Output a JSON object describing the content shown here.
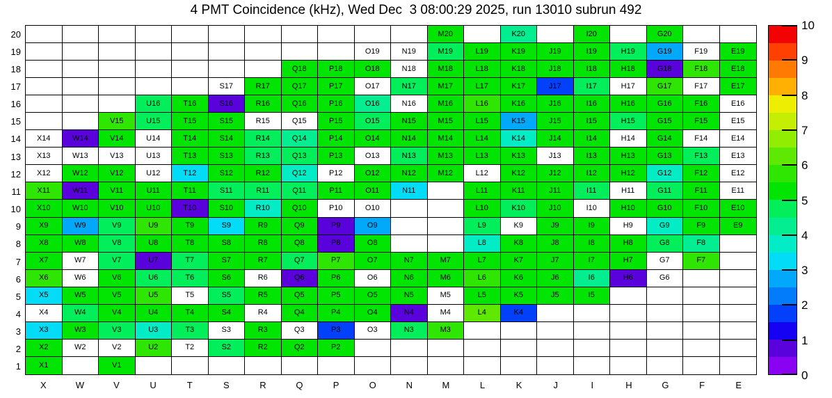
{
  "title": "4 PMT Coincidence (kHz), Wed Dec  3 08:00:29 2025, run 13010 subrun 492",
  "chart_data": {
    "type": "heatmap",
    "title": "4 PMT Coincidence (kHz), Wed Dec  3 08:00:29 2025, run 13010 subrun 492",
    "xlabel": "",
    "ylabel": "",
    "x_categories": [
      "X",
      "W",
      "V",
      "U",
      "T",
      "S",
      "R",
      "Q",
      "P",
      "O",
      "N",
      "M",
      "L",
      "K",
      "J",
      "I",
      "H",
      "G",
      "F",
      "E"
    ],
    "y_categories": [
      "20",
      "19",
      "18",
      "17",
      "16",
      "15",
      "14",
      "13",
      "12",
      "11",
      "10",
      "9",
      "8",
      "7",
      "6",
      "5",
      "4",
      "3",
      "2",
      "1"
    ],
    "value_unit": "kHz",
    "note_on_cells": "each cell = [label, value_estimate_kHz]; value null = labeled white cell; cell null = empty bin",
    "cells": [
      [
        null,
        null,
        null,
        null,
        null,
        null,
        null,
        null,
        null,
        null,
        null,
        [
          "M20",
          5.25
        ],
        null,
        [
          "K20",
          4.25
        ],
        null,
        [
          "I20",
          5.25
        ],
        null,
        [
          "G20",
          5.25
        ],
        null,
        null
      ],
      [
        null,
        null,
        null,
        null,
        null,
        null,
        null,
        null,
        null,
        [
          "O19",
          null
        ],
        [
          "N19",
          null
        ],
        [
          "M19",
          4.75
        ],
        [
          "L19",
          5.25
        ],
        [
          "K19",
          5.25
        ],
        [
          "J19",
          5.25
        ],
        [
          "I19",
          5.25
        ],
        [
          "H19",
          4.75
        ],
        [
          "G19",
          2.75
        ],
        [
          "F19",
          null
        ],
        [
          "E19",
          5.25
        ]
      ],
      [
        null,
        null,
        null,
        null,
        null,
        null,
        null,
        [
          "Q18",
          5.25
        ],
        [
          "P18",
          5.25
        ],
        [
          "O18",
          5.25
        ],
        [
          "N18",
          null
        ],
        [
          "M18",
          5.25
        ],
        [
          "L18",
          5.25
        ],
        [
          "K18",
          5.25
        ],
        [
          "J18",
          5.25
        ],
        [
          "I18",
          5.25
        ],
        [
          "H18",
          5.25
        ],
        [
          "G18",
          0.75
        ],
        [
          "F18",
          5.75
        ],
        [
          "E18",
          5.25
        ]
      ],
      [
        null,
        null,
        null,
        null,
        null,
        [
          "S17",
          null
        ],
        [
          "R17",
          5.25
        ],
        [
          "Q17",
          5.25
        ],
        [
          "P17",
          5.25
        ],
        [
          "O17",
          null
        ],
        [
          "N17",
          4.75
        ],
        [
          "M17",
          5.25
        ],
        [
          "L17",
          5.25
        ],
        [
          "K17",
          5.25
        ],
        [
          "J17",
          1.75
        ],
        [
          "I17",
          4.75
        ],
        [
          "H17",
          null
        ],
        [
          "G17",
          5.75
        ],
        [
          "F17",
          null
        ],
        [
          "E17",
          5.25
        ]
      ],
      [
        null,
        null,
        null,
        [
          "U16",
          4.75
        ],
        [
          "T16",
          5.25
        ],
        [
          "S16",
          0.75
        ],
        [
          "R16",
          5.25
        ],
        [
          "Q16",
          5.25
        ],
        [
          "P16",
          5.25
        ],
        [
          "O16",
          4.25
        ],
        [
          "N16",
          null
        ],
        [
          "M16",
          5.25
        ],
        [
          "L16",
          5.75
        ],
        [
          "K16",
          5.25
        ],
        [
          "J16",
          5.25
        ],
        [
          "I16",
          5.25
        ],
        [
          "H16",
          5.25
        ],
        [
          "G16",
          5.25
        ],
        [
          "F16",
          5.25
        ],
        [
          "E16",
          null
        ]
      ],
      [
        null,
        null,
        [
          "V15",
          5.75
        ],
        [
          "U15",
          4.75
        ],
        [
          "T15",
          5.25
        ],
        [
          "S15",
          5.25
        ],
        [
          "R15",
          null
        ],
        [
          "Q15",
          null
        ],
        [
          "P15",
          5.25
        ],
        [
          "O15",
          4.75
        ],
        [
          "N15",
          5.25
        ],
        [
          "M15",
          5.25
        ],
        [
          "L15",
          5.25
        ],
        [
          "K15",
          2.75
        ],
        [
          "J15",
          5.25
        ],
        [
          "I15",
          5.25
        ],
        [
          "H15",
          4.75
        ],
        [
          "G15",
          5.25
        ],
        [
          "F15",
          5.25
        ],
        [
          "E15",
          null
        ]
      ],
      [
        [
          "X14",
          null
        ],
        [
          "W14",
          0.75
        ],
        [
          "V14",
          5.25
        ],
        [
          "U14",
          null
        ],
        [
          "T14",
          5.25
        ],
        [
          "S14",
          5.25
        ],
        [
          "R14",
          4.75
        ],
        [
          "Q14",
          4.25
        ],
        [
          "P14",
          5.25
        ],
        [
          "O14",
          5.25
        ],
        [
          "N14",
          5.25
        ],
        [
          "M14",
          5.25
        ],
        [
          "L14",
          5.25
        ],
        [
          "K14",
          3.75
        ],
        [
          "J14",
          5.25
        ],
        [
          "I14",
          5.25
        ],
        [
          "H14",
          null
        ],
        [
          "G14",
          5.25
        ],
        [
          "F14",
          null
        ],
        [
          "E14",
          null
        ]
      ],
      [
        [
          "X13",
          null
        ],
        [
          "W13",
          null
        ],
        [
          "V13",
          null
        ],
        [
          "U13",
          null
        ],
        [
          "T13",
          5.25
        ],
        [
          "S13",
          5.25
        ],
        [
          "R13",
          4.75
        ],
        [
          "Q13",
          4.75
        ],
        [
          "P13",
          5.25
        ],
        [
          "O13",
          null
        ],
        [
          "N13",
          4.75
        ],
        [
          "M13",
          5.25
        ],
        [
          "L13",
          5.25
        ],
        [
          "K13",
          5.25
        ],
        [
          "J13",
          null
        ],
        [
          "I13",
          5.25
        ],
        [
          "H13",
          5.25
        ],
        [
          "G13",
          5.25
        ],
        [
          "F13",
          4.75
        ],
        [
          "E13",
          null
        ]
      ],
      [
        [
          "X12",
          null
        ],
        [
          "W12",
          5.25
        ],
        [
          "V12",
          5.25
        ],
        [
          "U12",
          null
        ],
        [
          "T12",
          3.25
        ],
        [
          "S12",
          5.25
        ],
        [
          "R12",
          5.25
        ],
        [
          "Q12",
          3.75
        ],
        [
          "P12",
          null
        ],
        [
          "O12",
          5.25
        ],
        [
          "N12",
          5.25
        ],
        [
          "M12",
          5.25
        ],
        [
          "L12",
          null
        ],
        [
          "K12",
          5.25
        ],
        [
          "J12",
          5.25
        ],
        [
          "I12",
          5.25
        ],
        [
          "H12",
          5.25
        ],
        [
          "G12",
          3.75
        ],
        [
          "F12",
          5.25
        ],
        [
          "E12",
          null
        ]
      ],
      [
        [
          "X11",
          5.75
        ],
        [
          "W11",
          0.75
        ],
        [
          "V11",
          5.25
        ],
        [
          "U11",
          5.25
        ],
        [
          "T11",
          5.25
        ],
        [
          "S11",
          4.75
        ],
        [
          "R11",
          4.75
        ],
        [
          "Q11",
          4.75
        ],
        [
          "P11",
          5.25
        ],
        [
          "O11",
          5.25
        ],
        [
          "N11",
          3.25
        ],
        null,
        [
          "L11",
          5.25
        ],
        [
          "K11",
          5.25
        ],
        [
          "J11",
          5.25
        ],
        [
          "I11",
          4.75
        ],
        [
          "H11",
          null
        ],
        [
          "G11",
          4.75
        ],
        [
          "F11",
          5.25
        ],
        [
          "E11",
          null
        ]
      ],
      [
        [
          "X10",
          5.25
        ],
        [
          "W10",
          5.25
        ],
        [
          "V10",
          5.25
        ],
        [
          "U10",
          5.25
        ],
        [
          "T10",
          0.75
        ],
        [
          "S10",
          5.25
        ],
        [
          "R10",
          3.75
        ],
        [
          "Q10",
          5.25
        ],
        [
          "P10",
          null
        ],
        [
          "O10",
          null
        ],
        null,
        null,
        [
          "L10",
          5.25
        ],
        [
          "K10",
          4.75
        ],
        [
          "J10",
          5.25
        ],
        [
          "I10",
          null
        ],
        [
          "H10",
          5.25
        ],
        [
          "G10",
          5.25
        ],
        [
          "F10",
          5.25
        ],
        [
          "E10",
          5.25
        ]
      ],
      [
        [
          "X9",
          5.25
        ],
        [
          "W9",
          2.75
        ],
        [
          "V9",
          4.75
        ],
        [
          "U9",
          5.75
        ],
        [
          "T9",
          5.25
        ],
        [
          "S9",
          3.25
        ],
        [
          "R9",
          5.25
        ],
        [
          "Q9",
          5.25
        ],
        [
          "P9",
          0.75
        ],
        [
          "O9",
          2.75
        ],
        null,
        null,
        [
          "L9",
          4.75
        ],
        [
          "K9",
          null
        ],
        [
          "J9",
          5.25
        ],
        [
          "I9",
          5.25
        ],
        [
          "H9",
          null
        ],
        [
          "G9",
          3.75
        ],
        [
          "F9",
          5.25
        ],
        [
          "E9",
          5.25
        ]
      ],
      [
        [
          "X8",
          5.25
        ],
        [
          "W8",
          5.25
        ],
        [
          "V8",
          4.75
        ],
        [
          "U8",
          5.25
        ],
        [
          "T8",
          5.25
        ],
        [
          "S8",
          5.25
        ],
        [
          "R8",
          5.25
        ],
        [
          "Q8",
          5.25
        ],
        [
          "P8",
          0.75
        ],
        [
          "O8",
          5.25
        ],
        null,
        null,
        [
          "L8",
          3.75
        ],
        [
          "K8",
          5.25
        ],
        [
          "J8",
          5.25
        ],
        [
          "I8",
          5.25
        ],
        [
          "H8",
          5.25
        ],
        [
          "G8",
          4.75
        ],
        [
          "F8",
          4.25
        ],
        null
      ],
      [
        [
          "X7",
          5.25
        ],
        [
          "W7",
          null
        ],
        [
          "V7",
          4.75
        ],
        [
          "U7",
          0.75
        ],
        [
          "T7",
          4.75
        ],
        [
          "S7",
          5.25
        ],
        [
          "R7",
          5.25
        ],
        [
          "Q7",
          4.75
        ],
        [
          "P7",
          5.75
        ],
        [
          "O7",
          5.25
        ],
        [
          "N7",
          5.25
        ],
        [
          "M7",
          5.25
        ],
        [
          "L7",
          5.25
        ],
        [
          "K7",
          5.25
        ],
        [
          "J7",
          5.25
        ],
        [
          "I7",
          5.25
        ],
        [
          "H7",
          5.25
        ],
        [
          "G7",
          null
        ],
        [
          "F7",
          5.75
        ],
        null
      ],
      [
        [
          "X6",
          5.75
        ],
        [
          "W6",
          null
        ],
        [
          "V6",
          5.25
        ],
        [
          "U6",
          4.75
        ],
        [
          "T6",
          4.75
        ],
        [
          "S6",
          5.25
        ],
        [
          "R6",
          null
        ],
        [
          "Q6",
          0.75
        ],
        [
          "P6",
          5.25
        ],
        [
          "O6",
          null
        ],
        [
          "N6",
          5.25
        ],
        [
          "M6",
          5.25
        ],
        [
          "L6",
          5.75
        ],
        [
          "K6",
          5.25
        ],
        [
          "J6",
          5.25
        ],
        [
          "I6",
          4.25
        ],
        [
          "H6",
          0.75
        ],
        [
          "G6",
          null
        ],
        null,
        null
      ],
      [
        [
          "X5",
          3.25
        ],
        [
          "W5",
          5.25
        ],
        [
          "V5",
          5.25
        ],
        [
          "U5",
          5.75
        ],
        [
          "T5",
          null
        ],
        [
          "S5",
          4.75
        ],
        [
          "R5",
          5.25
        ],
        [
          "Q5",
          5.25
        ],
        [
          "P5",
          5.25
        ],
        [
          "O5",
          5.25
        ],
        [
          "N5",
          5.25
        ],
        [
          "M5",
          null
        ],
        [
          "L5",
          5.25
        ],
        [
          "K5",
          5.25
        ],
        [
          "J5",
          5.25
        ],
        [
          "I5",
          5.25
        ],
        null,
        null,
        null,
        null
      ],
      [
        [
          "X4",
          null
        ],
        [
          "W4",
          4.75
        ],
        [
          "V4",
          5.25
        ],
        [
          "U4",
          5.25
        ],
        [
          "T4",
          5.25
        ],
        [
          "S4",
          5.25
        ],
        [
          "R4",
          null
        ],
        [
          "Q4",
          5.25
        ],
        [
          "P4",
          5.25
        ],
        [
          "O4",
          5.25
        ],
        [
          "N4",
          0.75
        ],
        [
          "M4",
          null
        ],
        [
          "L4",
          6.25
        ],
        [
          "K4",
          1.75
        ],
        null,
        null,
        null,
        null,
        null,
        null
      ],
      [
        [
          "X3",
          3.25
        ],
        [
          "W3",
          5.25
        ],
        [
          "V3",
          4.75
        ],
        [
          "U3",
          3.75
        ],
        [
          "T3",
          4.75
        ],
        [
          "S3",
          null
        ],
        [
          "R3",
          5.25
        ],
        [
          "Q3",
          null
        ],
        [
          "P3",
          1.75
        ],
        [
          "O3",
          null
        ],
        [
          "N3",
          4.75
        ],
        [
          "M3",
          5.75
        ],
        null,
        null,
        null,
        null,
        null,
        null,
        null,
        null
      ],
      [
        [
          "X2",
          5.25
        ],
        [
          "W2",
          null
        ],
        [
          "V2",
          null
        ],
        [
          "U2",
          5.75
        ],
        [
          "T2",
          null
        ],
        [
          "S2",
          4.75
        ],
        [
          "R2",
          5.25
        ],
        [
          "Q2",
          5.25
        ],
        [
          "P2",
          5.25
        ],
        null,
        null,
        null,
        null,
        null,
        null,
        null,
        null,
        null,
        null,
        null
      ],
      [
        [
          "X1",
          5.25
        ],
        null,
        [
          "V1",
          5.25
        ],
        null,
        null,
        null,
        null,
        null,
        null,
        null,
        null,
        null,
        null,
        null,
        null,
        null,
        null,
        null,
        null,
        null
      ]
    ],
    "colorbar": {
      "min": 0,
      "max": 10,
      "tick_labels": [
        "0",
        "1",
        "2",
        "3",
        "4",
        "5",
        "6",
        "7",
        "8",
        "9",
        "10"
      ],
      "bands_bottom_to_top": [
        "#8a02f2",
        "#5a02dc",
        "#1602f2",
        "#0240fa",
        "#027cfa",
        "#02a8fa",
        "#02dcf7",
        "#02ecc6",
        "#02ee91",
        "#02ee5a",
        "#02e402",
        "#2ee602",
        "#5ee802",
        "#91ee02",
        "#c6ee02",
        "#eeee02",
        "#ffb002",
        "#ff7a02",
        "#ff4002",
        "#f20202"
      ]
    },
    "grid": true,
    "cell_border_color": "#000000",
    "background_color": "#ffffff"
  }
}
